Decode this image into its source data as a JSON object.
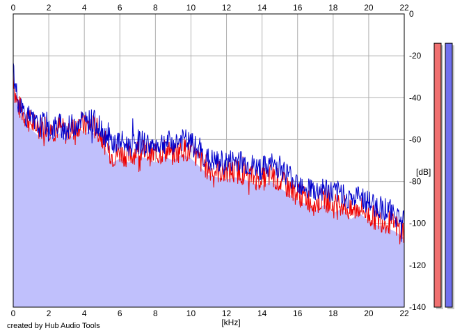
{
  "chart_data": {
    "type": "area",
    "xlabel": "[kHz]",
    "ylabel": "[dB]",
    "xlim": [
      0,
      22
    ],
    "ylim": [
      -140,
      0
    ],
    "x_ticks": [
      0,
      2,
      4,
      6,
      8,
      10,
      12,
      14,
      16,
      18,
      20,
      22
    ],
    "y_ticks": [
      0,
      -20,
      -40,
      -60,
      -80,
      -100,
      -120,
      -140
    ],
    "grid": true,
    "series": [
      {
        "color": "#ee0000",
        "x": [
          0,
          0.1,
          0.3,
          0.6,
          1.0,
          1.4,
          1.8,
          2.2,
          2.6,
          3.0,
          3.4,
          3.8,
          4.0,
          4.4,
          4.8,
          5.2,
          5.6,
          6.0,
          6.5,
          7.0,
          7.5,
          8.0,
          8.5,
          9.0,
          9.5,
          10.0,
          10.5,
          11.0,
          11.5,
          12.0,
          12.5,
          13.0,
          13.5,
          14.0,
          14.5,
          15.0,
          15.5,
          16.0,
          16.5,
          17.0,
          17.5,
          18.0,
          18.5,
          19.0,
          19.5,
          20.0,
          20.5,
          21.0,
          21.5,
          22.0
        ],
        "y": [
          -28,
          -38,
          -44,
          -48,
          -52,
          -55,
          -53,
          -56,
          -54,
          -57,
          -55,
          -52,
          -54,
          -53,
          -56,
          -62,
          -68,
          -66,
          -68,
          -65,
          -66,
          -68,
          -65,
          -67,
          -64,
          -66,
          -70,
          -74,
          -75,
          -76,
          -75,
          -76,
          -78,
          -79,
          -77,
          -80,
          -83,
          -86,
          -88,
          -91,
          -88,
          -92,
          -90,
          -95,
          -92,
          -96,
          -98,
          -99,
          -101,
          -104
        ]
      },
      {
        "color": "#0000cc",
        "x": [
          0,
          0.1,
          0.3,
          0.6,
          1.0,
          1.4,
          1.8,
          2.2,
          2.6,
          3.0,
          3.4,
          3.8,
          4.0,
          4.4,
          4.8,
          5.2,
          5.6,
          6.0,
          6.5,
          7.0,
          7.5,
          8.0,
          8.5,
          9.0,
          9.5,
          10.0,
          10.5,
          11.0,
          11.5,
          12.0,
          12.5,
          13.0,
          13.5,
          14.0,
          14.5,
          15.0,
          15.5,
          16.0,
          16.5,
          17.0,
          17.5,
          18.0,
          18.5,
          19.0,
          19.5,
          20.0,
          20.5,
          21.0,
          21.5,
          22.0
        ],
        "y": [
          -25,
          -35,
          -42,
          -47,
          -51,
          -54,
          -52,
          -55,
          -53,
          -55,
          -53,
          -50,
          -52,
          -51,
          -53,
          -58,
          -62,
          -61,
          -63,
          -61,
          -62,
          -63,
          -61,
          -62,
          -60,
          -62,
          -66,
          -70,
          -71,
          -71,
          -70,
          -71,
          -73,
          -74,
          -72,
          -73,
          -77,
          -80,
          -82,
          -85,
          -83,
          -86,
          -85,
          -89,
          -87,
          -90,
          -92,
          -93,
          -96,
          -98
        ]
      }
    ]
  },
  "level_meters": [
    {
      "name": "left",
      "color": "#f07070",
      "level": -14
    },
    {
      "name": "right",
      "color": "#7070ee",
      "level": -14
    }
  ],
  "credit": "created by Hub Audio Tools"
}
